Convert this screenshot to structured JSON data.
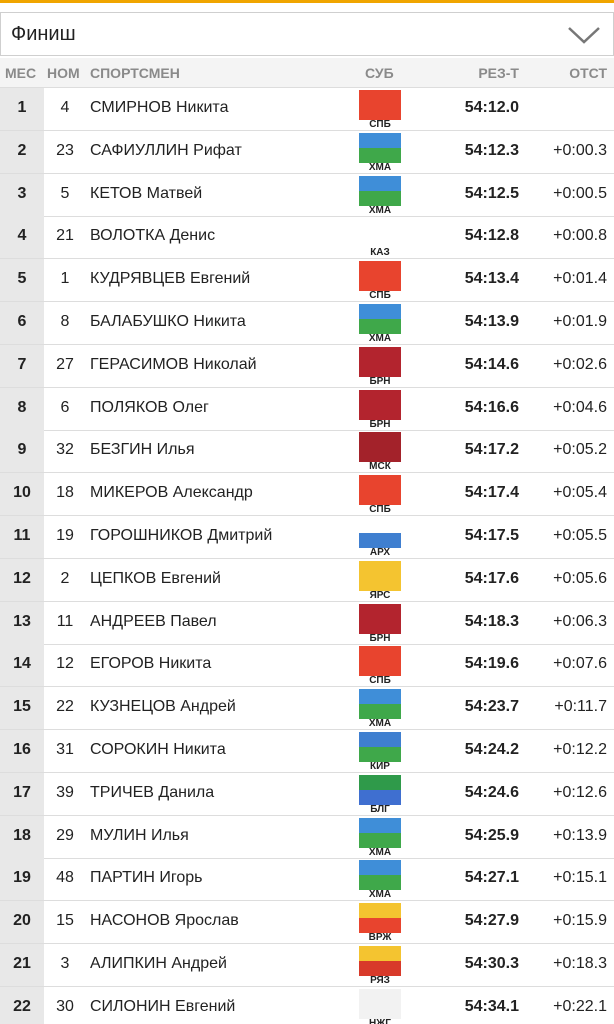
{
  "select": {
    "label": "Финиш"
  },
  "columns": [
    "МЕС",
    "НОМ",
    "СПОРТСМЕН",
    "СУБ",
    "РЕЗ-Т",
    "ОТСТ"
  ],
  "rows": [
    {
      "place": 1,
      "bib": 4,
      "name": "СМИРНОВ Никита",
      "region": "СПБ",
      "time": "54:12.0",
      "flag": [
        "#e8442e",
        "#e8442e"
      ]
    },
    {
      "place": 2,
      "bib": 23,
      "name": "САФИУЛЛИН Рифат",
      "region": "ХМА",
      "time": "54:12.3",
      "gap": "+0:00.3",
      "flag": [
        "#3f8ed8",
        "#3fa84a"
      ]
    },
    {
      "place": 3,
      "bib": 5,
      "name": "КЕТОВ Матвей",
      "region": "ХМА",
      "time": "54:12.5",
      "gap": "+0:00.5",
      "flag": [
        "#3f8ed8",
        "#3fa84a"
      ]
    },
    {
      "place": 4,
      "bib": 21,
      "name": "ВОЛОТКА Денис",
      "region": "КАЗ",
      "time": "54:12.8",
      "gap": "+0:00.8"
    },
    {
      "place": 5,
      "bib": 1,
      "name": "КУДРЯВЦЕВ Евгений",
      "region": "СПБ",
      "time": "54:13.4",
      "gap": "+0:01.4",
      "flag": [
        "#e8442e",
        "#e8442e"
      ]
    },
    {
      "place": 6,
      "bib": 8,
      "name": "БАЛАБУШКО Никита",
      "region": "ХМА",
      "time": "54:13.9",
      "gap": "+0:01.9",
      "flag": [
        "#3f8ed8",
        "#3fa84a"
      ]
    },
    {
      "place": 7,
      "bib": 27,
      "name": "ГЕРАСИМОВ Николай",
      "region": "БРН",
      "time": "54:14.6",
      "gap": "+0:02.6",
      "flag": [
        "#b3242e",
        "#b3242e"
      ]
    },
    {
      "place": 8,
      "bib": 6,
      "name": "ПОЛЯКОВ Олег",
      "region": "БРН",
      "time": "54:16.6",
      "gap": "+0:04.6",
      "flag": [
        "#b3242e",
        "#b3242e"
      ]
    },
    {
      "place": 9,
      "bib": 32,
      "name": "БЕЗГИН Илья",
      "region": "МСК",
      "time": "54:17.2",
      "gap": "+0:05.2",
      "flag": [
        "#a3222a",
        "#a3222a"
      ]
    },
    {
      "place": 10,
      "bib": 18,
      "name": "МИКЕРОВ Александр",
      "region": "СПБ",
      "time": "54:17.4",
      "gap": "+0:05.4",
      "flag": [
        "#e8442e",
        "#e8442e"
      ]
    },
    {
      "place": 11,
      "bib": 19,
      "name": "ГОРОШНИКОВ Дмитрий",
      "region": "АРХ",
      "time": "54:17.5",
      "gap": "+0:05.5",
      "flag": [
        "#ffffff",
        "#3f7fd0"
      ]
    },
    {
      "place": 12,
      "bib": 2,
      "name": "ЦЕПКОВ Евгений",
      "region": "ЯРС",
      "time": "54:17.6",
      "gap": "+0:05.6",
      "flag": [
        "#f4c430",
        "#f4c430"
      ]
    },
    {
      "place": 13,
      "bib": 11,
      "name": "АНДРЕЕВ Павел",
      "region": "БРН",
      "time": "54:18.3",
      "gap": "+0:06.3",
      "flag": [
        "#b3242e",
        "#b3242e"
      ]
    },
    {
      "place": 14,
      "bib": 12,
      "name": "ЕГОРОВ Никита",
      "region": "СПБ",
      "time": "54:19.6",
      "gap": "+0:07.6",
      "flag": [
        "#e8442e",
        "#e8442e"
      ]
    },
    {
      "place": 15,
      "bib": 22,
      "name": "КУЗНЕЦОВ Андрей",
      "region": "ХМА",
      "time": "54:23.7",
      "gap": "+0:11.7",
      "flag": [
        "#3f8ed8",
        "#3fa84a"
      ]
    },
    {
      "place": 16,
      "bib": 31,
      "name": "СОРОКИН Никита",
      "region": "КИР",
      "time": "54:24.2",
      "gap": "+0:12.2",
      "flag": [
        "#3f7fd0",
        "#3fa84a"
      ]
    },
    {
      "place": 17,
      "bib": 39,
      "name": "ТРИЧЕВ Данила",
      "region": "БЛГ",
      "time": "54:24.6",
      "gap": "+0:12.6",
      "flag": [
        "#2f9a4a",
        "#3f6fd0"
      ]
    },
    {
      "place": 18,
      "bib": 29,
      "name": "МУЛИН Илья",
      "region": "ХМА",
      "time": "54:25.9",
      "gap": "+0:13.9",
      "flag": [
        "#3f8ed8",
        "#3fa84a"
      ]
    },
    {
      "place": 19,
      "bib": 48,
      "name": "ПАРТИН Игорь",
      "region": "ХМА",
      "time": "54:27.1",
      "gap": "+0:15.1",
      "flag": [
        "#3f8ed8",
        "#3fa84a"
      ]
    },
    {
      "place": 20,
      "bib": 15,
      "name": "НАСОНОВ Ярослав",
      "region": "ВРЖ",
      "time": "54:27.9",
      "gap": "+0:15.9",
      "flag": [
        "#f4c430",
        "#e8442e"
      ]
    },
    {
      "place": 21,
      "bib": 3,
      "name": "АЛИПКИН Андрей",
      "region": "РЯЗ",
      "time": "54:30.3",
      "gap": "+0:18.3",
      "flag": [
        "#f4c430",
        "#d83a2a"
      ]
    },
    {
      "place": 22,
      "bib": 30,
      "name": "СИЛОНИН Евгений",
      "region": "НЖГ",
      "time": "54:34.1",
      "gap": "+0:22.1",
      "flag": [
        "#f2f2f2",
        "#f2f2f2"
      ]
    }
  ]
}
